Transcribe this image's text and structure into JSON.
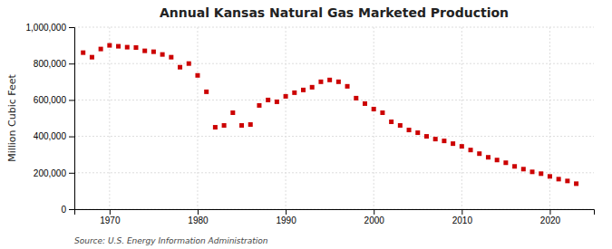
{
  "chart_data": {
    "type": "scatter",
    "title": "Annual Kansas Natural Gas Marketed Production",
    "ylabel": "Million Cubic Feet",
    "annotations": [
      "Source: U.S. Energy Information Administration"
    ],
    "color": "#cc0000",
    "marker": "square",
    "grid": true,
    "x": [
      1967,
      1968,
      1969,
      1970,
      1971,
      1972,
      1973,
      1974,
      1975,
      1976,
      1977,
      1978,
      1979,
      1980,
      1981,
      1982,
      1983,
      1984,
      1985,
      1986,
      1987,
      1988,
      1989,
      1990,
      1991,
      1992,
      1993,
      1994,
      1995,
      1996,
      1997,
      1998,
      1999,
      2000,
      2001,
      2002,
      2003,
      2004,
      2005,
      2006,
      2007,
      2008,
      2009,
      2010,
      2011,
      2012,
      2013,
      2014,
      2015,
      2016,
      2017,
      2018,
      2019,
      2020,
      2021,
      2022,
      2023
    ],
    "values": [
      860000,
      835000,
      880000,
      900000,
      895000,
      890000,
      888000,
      870000,
      865000,
      850000,
      835000,
      780000,
      800000,
      735000,
      645000,
      450000,
      460000,
      530000,
      460000,
      465000,
      570000,
      600000,
      590000,
      620000,
      640000,
      655000,
      670000,
      700000,
      710000,
      700000,
      675000,
      610000,
      580000,
      550000,
      530000,
      480000,
      460000,
      435000,
      420000,
      400000,
      385000,
      375000,
      360000,
      345000,
      325000,
      305000,
      285000,
      270000,
      255000,
      235000,
      220000,
      205000,
      195000,
      180000,
      165000,
      155000,
      140000
    ],
    "xlim": [
      1966,
      2025
    ],
    "ylim": [
      0,
      1000000
    ],
    "xticks": [
      1970,
      1980,
      1990,
      2000,
      2010,
      2020
    ],
    "yticks": [
      0,
      {
        "value": 200000,
        "label": "200,000"
      },
      {
        "value": 400000,
        "label": "400,000"
      },
      {
        "value": 600000,
        "label": "600,000"
      },
      {
        "value": 800000,
        "label": "800,000"
      },
      {
        "value": 1000000,
        "label": "1,000,000"
      }
    ]
  }
}
